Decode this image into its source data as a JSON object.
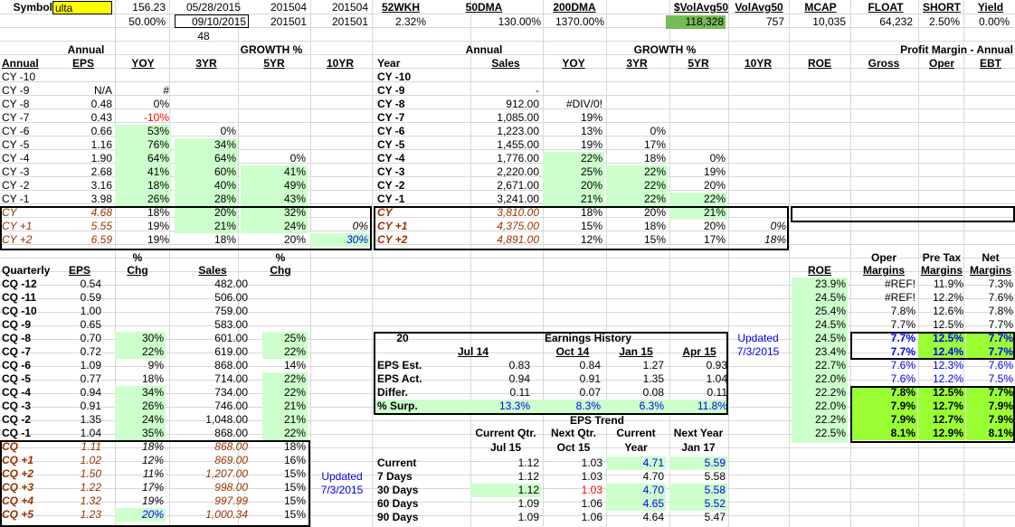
{
  "header": {
    "symbol_label": "Symbol",
    "symbol_value": "ulta",
    "price": "156.23",
    "price_pct": "50.00%",
    "date1": "05/28/2015",
    "date2": "09/10/2015",
    "num48": "48",
    "p1a": "201504",
    "p1b": "201501",
    "p2a": "201504",
    "p2b": "201501",
    "wkh_label": "52WKH",
    "wkh_value": "2.32%",
    "dma50_label": "50DMA",
    "dma50_value": "130.00%",
    "dma200_label": "200DMA",
    "dma200_value": "1370.00%",
    "volavg_label": "$VolAvg50",
    "volavg_value": "118,328",
    "volavg2_label": "VolAvg50",
    "volavg2_value": "757",
    "mcap_label": "MCAP",
    "mcap_value": "10,035",
    "float_label": "FLOAT",
    "float_value": "64,232",
    "short_label": "SHORT",
    "short_value": "2.50%",
    "yield_label": "Yield",
    "yield_value": "0.00%"
  },
  "eps_annual": {
    "group1": "Annual",
    "group2": "GROWTH %",
    "headers": [
      "Annual",
      "EPS",
      "YOY",
      "3YR",
      "5YR",
      "10YR"
    ],
    "rows": [
      [
        "CY -10",
        "",
        "",
        "",
        "",
        ""
      ],
      [
        "CY -9",
        "N/A",
        "#",
        "",
        "",
        ""
      ],
      [
        "CY -8",
        "0.48",
        "0%",
        "",
        "",
        ""
      ],
      [
        "CY -7",
        "0.43",
        "-10%",
        "",
        "",
        ""
      ],
      [
        "CY -6",
        "0.66",
        "53%",
        "0%",
        "",
        ""
      ],
      [
        "CY -5",
        "1.16",
        "76%",
        "34%",
        "",
        ""
      ],
      [
        "CY -4",
        "1.90",
        "64%",
        "64%",
        "0%",
        ""
      ],
      [
        "CY -3",
        "2.68",
        "41%",
        "60%",
        "41%",
        ""
      ],
      [
        "CY -2",
        "3.16",
        "18%",
        "40%",
        "49%",
        ""
      ],
      [
        "CY -1",
        "3.98",
        "26%",
        "28%",
        "43%",
        ""
      ],
      [
        "CY",
        "4.68",
        "18%",
        "20%",
        "32%",
        ""
      ],
      [
        "CY +1",
        "5.55",
        "19%",
        "21%",
        "24%",
        "0%"
      ],
      [
        "CY +2",
        "6.59",
        "19%",
        "18%",
        "20%",
        "30%"
      ]
    ]
  },
  "sales_annual": {
    "group1": "Annual",
    "group2": "GROWTH %",
    "headers": [
      "Year",
      "Sales",
      "YOY",
      "3YR",
      "5YR",
      "10YR"
    ],
    "rows": [
      [
        "CY -10",
        "",
        "",
        "",
        "",
        ""
      ],
      [
        "CY -9",
        "-",
        "",
        "",
        "",
        ""
      ],
      [
        "CY -8",
        "912.00",
        "#DIV/0!",
        "",
        "",
        ""
      ],
      [
        "CY -7",
        "1,085.00",
        "19%",
        "",
        "",
        ""
      ],
      [
        "CY -6",
        "1,223.00",
        "13%",
        "0%",
        "",
        ""
      ],
      [
        "CY -5",
        "1,455.00",
        "19%",
        "17%",
        "",
        ""
      ],
      [
        "CY -4",
        "1,776.00",
        "22%",
        "18%",
        "0%",
        ""
      ],
      [
        "CY -3",
        "2,220.00",
        "25%",
        "22%",
        "19%",
        ""
      ],
      [
        "CY -2",
        "2,671.00",
        "20%",
        "22%",
        "20%",
        ""
      ],
      [
        "CY -1",
        "3,241.00",
        "21%",
        "22%",
        "22%",
        ""
      ],
      [
        "CY",
        "3,810.00",
        "18%",
        "20%",
        "21%",
        ""
      ],
      [
        "CY +1",
        "4,375.00",
        "15%",
        "18%",
        "20%",
        "0%"
      ],
      [
        "CY +2",
        "4,891.00",
        "12%",
        "15%",
        "17%",
        "18%"
      ]
    ]
  },
  "profit_annual": {
    "title": "Profit Margin - Annual",
    "headers": [
      "ROE",
      "Gross",
      "Oper",
      "EBT"
    ]
  },
  "eps_quarterly": {
    "headers": [
      "Quarterly",
      "EPS",
      "%",
      "Chg",
      "Sales",
      "%",
      "Chg"
    ],
    "rows": [
      [
        "CQ -12",
        "0.54",
        "",
        "482.00",
        ""
      ],
      [
        "CQ -11",
        "0.59",
        "",
        "506.00",
        ""
      ],
      [
        "CQ -10",
        "1.00",
        "",
        "759.00",
        ""
      ],
      [
        "CQ -9",
        "0.65",
        "",
        "583.00",
        ""
      ],
      [
        "CQ -8",
        "0.70",
        "30%",
        "601.00",
        "25%"
      ],
      [
        "CQ -7",
        "0.72",
        "22%",
        "619.00",
        "22%"
      ],
      [
        "CQ -6",
        "1.09",
        "9%",
        "868.00",
        "14%"
      ],
      [
        "CQ -5",
        "0.77",
        "18%",
        "714.00",
        "22%"
      ],
      [
        "CQ -4",
        "0.94",
        "34%",
        "734.00",
        "22%"
      ],
      [
        "CQ -3",
        "0.91",
        "26%",
        "746.00",
        "21%"
      ],
      [
        "CQ -2",
        "1.35",
        "24%",
        "1,048.00",
        "21%"
      ],
      [
        "CQ -1",
        "1.04",
        "35%",
        "868.00",
        "22%"
      ],
      [
        "CQ",
        "1.11",
        "18%",
        "868.00",
        "18%"
      ],
      [
        "CQ +1",
        "1.02",
        "12%",
        "869.00",
        "16%"
      ],
      [
        "CQ +2",
        "1.50",
        "11%",
        "1,207.00",
        "15%"
      ],
      [
        "CQ +3",
        "1.22",
        "17%",
        "998.00",
        "15%"
      ],
      [
        "CQ +4",
        "1.32",
        "19%",
        "997.99",
        "15%"
      ],
      [
        "CQ +5",
        "1.23",
        "20%",
        "1,000.34",
        "15%"
      ]
    ],
    "updated_label": "Updated",
    "updated_date": "7/3/2015"
  },
  "earnings_history": {
    "count": "20",
    "title": "Earnings History",
    "updated_label": "Updated",
    "updated_date": "7/3/2015",
    "columns": [
      "Jul 14",
      "Oct 14",
      "Jan 15",
      "Apr 15"
    ],
    "rows": [
      {
        "label": "EPS Est.",
        "values": [
          "0.83",
          "0.84",
          "1.27",
          "0.93"
        ]
      },
      {
        "label": "EPS Act.",
        "values": [
          "0.94",
          "0.91",
          "1.35",
          "1.04"
        ]
      },
      {
        "label": "Differ.",
        "values": [
          "0.11",
          "0.07",
          "0.08",
          "0.11"
        ]
      },
      {
        "label": "% Surp.",
        "values": [
          "13.3%",
          "8.3%",
          "6.3%",
          "11.8%"
        ]
      }
    ]
  },
  "eps_trend": {
    "title": "EPS Trend",
    "headers_top": [
      "Current Qtr.",
      "Next Qtr.",
      "Current",
      "Next Year"
    ],
    "headers_bottom": [
      "Jul 15",
      "Oct 15",
      "Year",
      "Jan 17"
    ],
    "rows": [
      {
        "label": "Current",
        "values": [
          "1.12",
          "1.03",
          "4.71",
          "5.59"
        ]
      },
      {
        "label": "7 Days",
        "values": [
          "1.12",
          "1.03",
          "4.70",
          "5.58"
        ]
      },
      {
        "label": "30 Days",
        "values": [
          "1.12",
          "1.03",
          "4.70",
          "5.58"
        ]
      },
      {
        "label": "60 Days",
        "values": [
          "1.09",
          "1.06",
          "4.65",
          "5.52"
        ]
      },
      {
        "label": "90 Days",
        "values": [
          "1.09",
          "1.06",
          "4.64",
          "5.47"
        ]
      }
    ]
  },
  "profit_quarterly": {
    "headers_top": [
      "Oper",
      "Pre Tax",
      "Net"
    ],
    "headers": [
      "ROE",
      "Margins",
      "Margins",
      "Margins"
    ],
    "rows": [
      [
        "23.9%",
        "#REF!",
        "11.9%",
        "7.3%"
      ],
      [
        "24.5%",
        "#REF!",
        "12.2%",
        "7.6%"
      ],
      [
        "25.4%",
        "7.8%",
        "12.6%",
        "7.8%"
      ],
      [
        "24.5%",
        "7.7%",
        "12.5%",
        "7.7%"
      ],
      [
        "24.5%",
        "7.7%",
        "12.5%",
        "7.7%"
      ],
      [
        "23.4%",
        "7.7%",
        "12.4%",
        "7.7%"
      ],
      [
        "22.7%",
        "7.6%",
        "12.3%",
        "7.6%"
      ],
      [
        "22.0%",
        "7.6%",
        "12.2%",
        "7.5%"
      ],
      [
        "22.2%",
        "7.8%",
        "12.5%",
        "7.7%"
      ],
      [
        "22.0%",
        "7.9%",
        "12.7%",
        "7.9%"
      ],
      [
        "22.2%",
        "7.9%",
        "12.7%",
        "7.9%"
      ],
      [
        "22.5%",
        "8.1%",
        "12.9%",
        "8.1%"
      ]
    ]
  }
}
